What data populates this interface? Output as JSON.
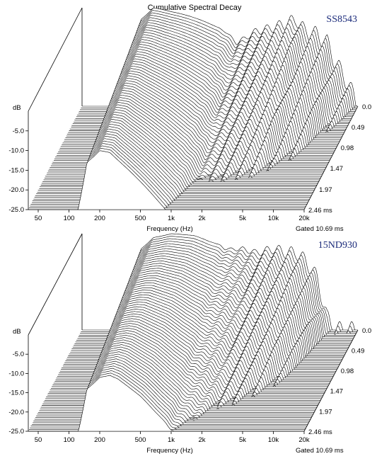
{
  "title": "Cumulative Spectral Decay",
  "chart_data": [
    {
      "type": "waterfall",
      "model": "SS8543",
      "xlabel": "Frequency (Hz)",
      "ylabel": "dB",
      "xscale": "log",
      "xlim": [
        40,
        20000
      ],
      "x_ticks": [
        "50",
        "100",
        "200",
        "500",
        "1k",
        "2k",
        "5k",
        "10k",
        "20k"
      ],
      "x_tick_values": [
        50,
        100,
        200,
        500,
        1000,
        2000,
        5000,
        10000,
        20000
      ],
      "ylim": [
        -25,
        0
      ],
      "y_ticks": [
        "-5.0",
        "-10.0",
        "-15.0",
        "-20.0",
        "-25.0"
      ],
      "y_tick_values": [
        -5,
        -10,
        -15,
        -20,
        -25
      ],
      "time_ticks": [
        "0.0",
        "0.49",
        "0.98",
        "1.47",
        "1.97",
        "2.46 ms"
      ],
      "time_tick_values": [
        0,
        0.49,
        0.98,
        1.47,
        1.97,
        2.46
      ],
      "gated": "Gated 10.69 ms",
      "slices": 60,
      "time_max_ms": 2.46,
      "response_db": {
        "freq_hz": [
          40,
          100,
          150,
          200,
          300,
          500,
          700,
          1000,
          1300,
          1500,
          2000,
          3000,
          4000,
          5000,
          6000,
          8000,
          10000,
          12000,
          15000,
          20000
        ],
        "level_db": [
          -25,
          -25,
          -3,
          0,
          -1,
          -2.5,
          -4,
          -6,
          -9,
          -8,
          -6,
          -5,
          -4,
          -3,
          -6,
          -7,
          -9,
          -14,
          -18,
          -25
        ]
      }
    },
    {
      "type": "waterfall",
      "model": "15ND930",
      "xlabel": "Frequency (Hz)",
      "ylabel": "dB",
      "xscale": "log",
      "xlim": [
        40,
        20000
      ],
      "x_ticks": [
        "50",
        "100",
        "200",
        "500",
        "1k",
        "2k",
        "5k",
        "10k",
        "20k"
      ],
      "x_tick_values": [
        50,
        100,
        200,
        500,
        1000,
        2000,
        5000,
        10000,
        20000
      ],
      "ylim": [
        -25,
        0
      ],
      "y_ticks": [
        "-5.0",
        "-10.0",
        "-15.0",
        "-20.0",
        "-25.0"
      ],
      "y_tick_values": [
        -5,
        -10,
        -15,
        -20,
        -25
      ],
      "time_ticks": [
        "0.0",
        "0.49",
        "0.98",
        "1.47",
        "1.97",
        "2.46 ms"
      ],
      "time_tick_values": [
        0,
        0.49,
        0.98,
        1.47,
        1.97,
        2.46
      ],
      "gated": "Gated 10.69 ms",
      "slices": 60,
      "time_max_ms": 2.46,
      "response_db": {
        "freq_hz": [
          40,
          100,
          150,
          200,
          300,
          500,
          700,
          900,
          1000,
          1500,
          2000,
          3000,
          4000,
          5000,
          6000,
          7000,
          8000,
          10000,
          12000,
          20000
        ],
        "level_db": [
          -25,
          -25,
          -4,
          -1,
          0,
          -0.5,
          -2,
          -3,
          -4,
          -4,
          -5,
          -4,
          -5,
          -5,
          -7,
          -9,
          -12,
          -22,
          -25,
          -25
        ]
      }
    }
  ]
}
